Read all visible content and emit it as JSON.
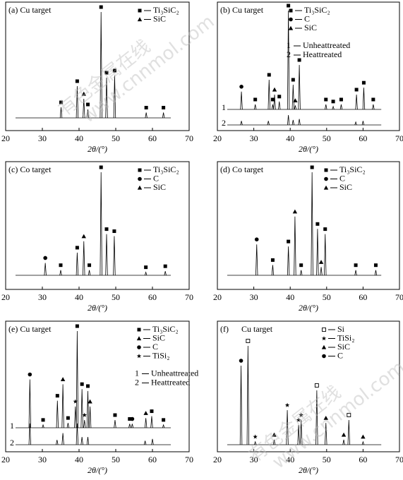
{
  "watermark": [
    "有色金属在线",
    "www.cnnmol.com"
  ],
  "chart_data": [
    {
      "type": "xrd",
      "title": "(a) Cu target",
      "xlabel": "2θ/(°)",
      "xlim": [
        20,
        70
      ],
      "xticks": [
        20,
        30,
        40,
        50,
        60,
        70
      ],
      "legend": [
        {
          "symbol": "square",
          "name": "Ti₃SiC₂"
        },
        {
          "symbol": "triangle",
          "name": "SiC"
        }
      ],
      "series": [
        {
          "x": [
            35.1,
            39.5,
            41.3,
            42.4,
            46.0,
            47.5,
            49.7,
            58.3,
            63.0
          ],
          "values": [
            10,
            30,
            18,
            8,
            100,
            38,
            40,
            5,
            5
          ],
          "phases": [
            "square",
            "square",
            "triangle",
            "square",
            "square",
            "square",
            "square",
            "square",
            "square"
          ]
        }
      ]
    },
    {
      "type": "xrd",
      "title": "(b) Cu target",
      "xlabel": "2θ/(°)",
      "xlim": [
        20,
        70
      ],
      "xticks": [
        20,
        30,
        40,
        50,
        60,
        70
      ],
      "legend": [
        {
          "symbol": "square",
          "name": "Ti₃SiC₂"
        },
        {
          "symbol": "circle",
          "name": "C"
        },
        {
          "symbol": "triangle",
          "name": "SiC"
        }
      ],
      "series": [
        {
          "name": "1",
          "legend": "Unheattreated",
          "x": [
            26.6,
            30.4,
            34.2,
            35.2,
            35.7,
            37.0,
            39.5,
            40.8,
            41.4,
            42.5,
            49.8,
            51.8,
            54.0,
            58.2,
            60.2,
            62.8
          ],
          "values": [
            18,
            5,
            30,
            5,
            15,
            8,
            100,
            25,
            4,
            45,
            5,
            3,
            5,
            15,
            22,
            5
          ],
          "phases": [
            "circle",
            "square",
            "square",
            "square",
            "triangle",
            "square",
            "square",
            "square",
            "triangle",
            "square",
            "square",
            "square",
            "square",
            "square",
            "square",
            "square"
          ]
        },
        {
          "name": "2",
          "legend": "Heattreated",
          "x": [
            26.6,
            34.0,
            39.5,
            40.8,
            42.5,
            58.0,
            60.0
          ],
          "values": [
            4,
            4,
            10,
            5,
            6,
            3,
            4
          ]
        }
      ]
    },
    {
      "type": "xrd",
      "title": "(c) Co target",
      "xlabel": "2θ/(°)",
      "xlim": [
        20,
        70
      ],
      "xticks": [
        20,
        30,
        40,
        50,
        60,
        70
      ],
      "legend": [
        {
          "symbol": "square",
          "name": "Ti₃SiC₂"
        },
        {
          "symbol": "circle",
          "name": "C"
        },
        {
          "symbol": "triangle",
          "name": "SiC"
        }
      ],
      "series": [
        {
          "x": [
            30.8,
            35.0,
            39.5,
            41.3,
            42.8,
            46.0,
            47.5,
            49.6,
            58.2,
            63.5
          ],
          "values": [
            12,
            5,
            22,
            33,
            5,
            100,
            40,
            38,
            3,
            4
          ],
          "phases": [
            "circle",
            "square",
            "square",
            "triangle",
            "square",
            "square",
            "square",
            "square",
            "square",
            "square"
          ]
        }
      ]
    },
    {
      "type": "xrd",
      "title": "(d) Co target",
      "xlabel": "2θ/(°)",
      "xlim": [
        20,
        70
      ],
      "xticks": [
        20,
        30,
        40,
        50,
        60,
        70
      ],
      "legend": [
        {
          "symbol": "square",
          "name": "Ti₃SiC₂"
        },
        {
          "symbol": "circle",
          "name": "C"
        },
        {
          "symbol": "triangle",
          "name": "SiC"
        }
      ],
      "series": [
        {
          "x": [
            30.8,
            35.2,
            39.5,
            41.3,
            43.0,
            46.0,
            47.5,
            48.5,
            49.6,
            58.0,
            63.5
          ],
          "values": [
            30,
            10,
            28,
            57,
            5,
            100,
            45,
            8,
            40,
            5,
            5
          ],
          "phases": [
            "circle",
            "square",
            "square",
            "triangle",
            "square",
            "square",
            "square",
            "triangle",
            "square",
            "square",
            "square"
          ]
        }
      ]
    },
    {
      "type": "xrd",
      "title": "(e) Cu target",
      "xlabel": "2θ/(°)",
      "xlim": [
        20,
        70
      ],
      "xticks": [
        20,
        30,
        40,
        50,
        60,
        70
      ],
      "legend": [
        {
          "symbol": "square",
          "name": "Ti₃SiC₂"
        },
        {
          "symbol": "triangle",
          "name": "SiC"
        },
        {
          "symbol": "circle",
          "name": "C"
        },
        {
          "symbol": "star",
          "name": "TiSi₂"
        }
      ],
      "series": [
        {
          "name": "1",
          "legend": "Unheattreated",
          "x": [
            26.6,
            30.2,
            34.1,
            35.6,
            37.0,
            39.0,
            39.5,
            40.8,
            41.5,
            42.4,
            43.0,
            49.8,
            53.8,
            54.5,
            58.2,
            59.8,
            63.0
          ],
          "values": [
            50,
            3,
            28,
            45,
            5,
            22,
            100,
            40,
            8,
            38,
            22,
            8,
            4,
            4,
            10,
            12,
            3
          ],
          "phases": [
            "circle",
            "square",
            "square",
            "triangle",
            "square",
            "star",
            "square",
            "square",
            "star",
            "square",
            "triangle",
            "square",
            "square",
            "circle",
            "triangle",
            "square",
            "square"
          ]
        },
        {
          "name": "2",
          "legend": "Heattreated",
          "x": [
            26.6,
            34.0,
            35.6,
            39.5,
            40.8,
            42.4,
            58.0,
            60.0
          ],
          "values": [
            22,
            5,
            12,
            22,
            8,
            8,
            4,
            6
          ]
        }
      ]
    },
    {
      "type": "xrd",
      "title": "(f)      Cu target",
      "xlabel": "2θ/(°)",
      "xlim": [
        20,
        70
      ],
      "xticks": [
        20,
        30,
        40,
        50,
        60,
        70
      ],
      "legend": [
        {
          "symbol": "open-square",
          "name": "Si"
        },
        {
          "symbol": "star",
          "name": "TiSi₂"
        },
        {
          "symbol": "triangle",
          "name": "SiC"
        },
        {
          "symbol": "circle",
          "name": "C"
        }
      ],
      "series": [
        {
          "x": [
            26.5,
            28.4,
            30.4,
            35.6,
            39.2,
            42.3,
            43.0,
            47.3,
            49.8,
            54.7,
            56.1,
            60.0
          ],
          "values": [
            80,
            100,
            3,
            5,
            35,
            20,
            25,
            55,
            22,
            5,
            25,
            3
          ],
          "phases": [
            "circle",
            "open-square",
            "star",
            "triangle",
            "star",
            "star",
            "star",
            "open-square",
            "triangle",
            "triangle",
            "open-square",
            "triangle"
          ]
        }
      ]
    }
  ]
}
